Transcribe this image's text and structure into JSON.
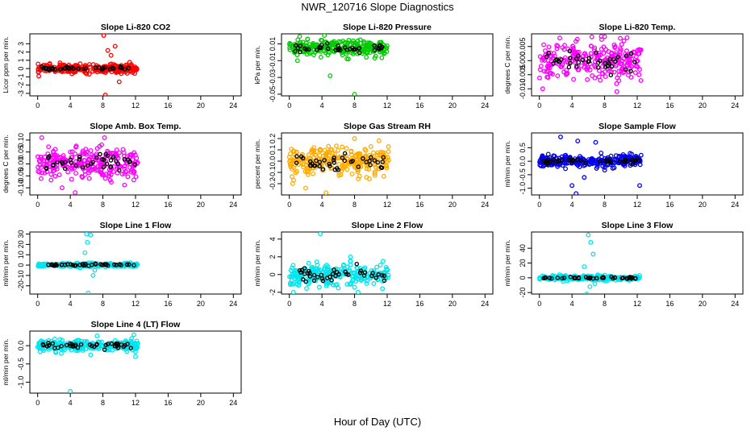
{
  "figure": {
    "title": "NWR_120716  Slope Diagnostics",
    "xlabel": "Hour of Day (UTC)"
  },
  "chart_data": [
    {
      "type": "scatter",
      "title": "Slope Li-820 CO2",
      "ylabel": "Licor ppm per min.",
      "color": "#ff0000",
      "xlim": [
        0,
        24
      ],
      "xticks": [
        0,
        4,
        8,
        12,
        16,
        20,
        24
      ],
      "ylim": [
        -3.3,
        4.2
      ],
      "yticks": [
        -3,
        -2,
        -1,
        0,
        1,
        2,
        3
      ],
      "x_range": [
        0,
        12.2
      ],
      "center": 0,
      "spread": 0.35,
      "outliers": [
        [
          8.1,
          4.0
        ],
        [
          8.3,
          -3.2
        ],
        [
          9.5,
          2.7
        ],
        [
          8.6,
          2.2
        ],
        [
          10.0,
          -1.6
        ],
        [
          9.0,
          1.6
        ]
      ],
      "black_spread": 0.15
    },
    {
      "type": "scatter",
      "title": "Slope Li-820 Pressure",
      "ylabel": "kPa per min.",
      "color": "#00cc00",
      "xlim": [
        0,
        24
      ],
      "xticks": [
        0,
        4,
        8,
        12,
        16,
        20,
        24
      ],
      "ylim": [
        -0.052,
        0.022
      ],
      "yticks": [
        -0.05,
        -0.03,
        -0.01,
        0.01
      ],
      "x_range": [
        0,
        12.0
      ],
      "center": 0.005,
      "spread": 0.006,
      "outliers": [
        [
          8.0,
          -0.05
        ],
        [
          4.3,
          0.02
        ],
        [
          1.0,
          -0.01
        ],
        [
          5.0,
          -0.028
        ],
        [
          3.0,
          -0.003
        ]
      ],
      "black_spread": 0.004
    },
    {
      "type": "scatter",
      "title": "Slope Li-820 Temp.",
      "ylabel": "degrees C per min.",
      "color": "#ff00ff",
      "xlim": [
        0,
        24
      ],
      "xticks": [
        0,
        4,
        8,
        12,
        16,
        20,
        24
      ],
      "ylim": [
        -0.0125,
        0.0095
      ],
      "yticks": [
        -0.01,
        -0.005,
        0.0,
        0.005
      ],
      "x_range": [
        0,
        12.5
      ],
      "center": 0.0,
      "spread": 0.0045,
      "outliers": [
        [
          8.0,
          0.0085
        ],
        [
          9.5,
          -0.011
        ],
        [
          0.4,
          -0.01
        ],
        [
          2.5,
          0.008
        ]
      ],
      "black_spread": 0.003
    },
    {
      "type": "scatter",
      "title": "Slope Amb. Box Temp.",
      "ylabel": "degrees C per min.",
      "color": "#ff00ff",
      "xlim": [
        0,
        24
      ],
      "xticks": [
        0,
        4,
        8,
        12,
        16,
        20,
        24
      ],
      "ylim": [
        -0.13,
        0.13
      ],
      "yticks": [
        -0.1,
        -0.05,
        0.0,
        0.05,
        0.1
      ],
      "x_range": [
        0,
        12.3
      ],
      "center": 0.0,
      "spread": 0.045,
      "outliers": [
        [
          4.6,
          -0.12
        ],
        [
          0.5,
          0.11
        ],
        [
          8.2,
          0.11
        ],
        [
          3.0,
          -0.1
        ]
      ],
      "black_spread": 0.03
    },
    {
      "type": "scatter",
      "title": "Slope Gas Stream RH",
      "ylabel": "percent per min.",
      "color": "#ffaa00",
      "xlim": [
        0,
        24
      ],
      "xticks": [
        0,
        4,
        8,
        12,
        16,
        20,
        24
      ],
      "ylim": [
        -0.3,
        0.25
      ],
      "yticks": [
        -0.2,
        -0.1,
        0.0,
        0.1,
        0.2
      ],
      "x_range": [
        0,
        12.2
      ],
      "center": 0.0,
      "spread": 0.08,
      "outliers": [
        [
          4.5,
          -0.28
        ],
        [
          8.0,
          0.2
        ],
        [
          2.0,
          -0.24
        ],
        [
          11.0,
          0.18
        ]
      ],
      "black_spread": 0.06
    },
    {
      "type": "scatter",
      "title": "Slope Sample Flow",
      "ylabel": "ml/min per min.",
      "color": "#0000ee",
      "xlim": [
        0,
        24
      ],
      "xticks": [
        0,
        4,
        8,
        12,
        16,
        20,
        24
      ],
      "ylim": [
        -1.25,
        1.05
      ],
      "yticks": [
        -1.0,
        -0.5,
        0.0,
        0.5
      ],
      "x_range": [
        0,
        12.5
      ],
      "center": 0.0,
      "spread": 0.15,
      "outliers": [
        [
          4.5,
          -1.2
        ],
        [
          4.0,
          -0.9
        ],
        [
          5.5,
          -0.6
        ],
        [
          12.3,
          -0.9
        ],
        [
          2.6,
          0.9
        ],
        [
          4.7,
          0.75
        ],
        [
          6.9,
          0.7
        ]
      ],
      "black_spread": 0.08
    },
    {
      "type": "scatter",
      "title": "Slope Line 1 Flow",
      "ylabel": "ml/min per min.",
      "color": "#00e5ee",
      "xlim": [
        0,
        24
      ],
      "xticks": [
        0,
        4,
        8,
        12,
        16,
        20,
        24
      ],
      "ylim": [
        -28,
        32
      ],
      "yticks": [
        -20,
        -10,
        0,
        10,
        20,
        30
      ],
      "x_range": [
        0,
        12.3
      ],
      "center": 0.0,
      "spread": 1.2,
      "outliers": [
        [
          6.0,
          30
        ],
        [
          6.5,
          29
        ],
        [
          6.2,
          -27
        ],
        [
          6.8,
          -10
        ],
        [
          6.1,
          22
        ],
        [
          7.0,
          -5
        ],
        [
          5.8,
          12
        ]
      ],
      "black_spread": 0.8
    },
    {
      "type": "scatter",
      "title": "Slope Line 2 Flow",
      "ylabel": "ml/min per min.",
      "color": "#00e5ee",
      "xlim": [
        0,
        24
      ],
      "xticks": [
        0,
        4,
        8,
        12,
        16,
        20,
        24
      ],
      "ylim": [
        -2.2,
        4.8
      ],
      "yticks": [
        -2,
        0,
        2,
        4
      ],
      "x_range": [
        0,
        12.2
      ],
      "center": 0.0,
      "spread": 0.8,
      "outliers": [
        [
          3.8,
          4.6
        ],
        [
          0.5,
          -2.0
        ],
        [
          7.5,
          2.0
        ],
        [
          11.5,
          1.5
        ]
      ],
      "black_spread": 0.7
    },
    {
      "type": "scatter",
      "title": "Slope Line 3 Flow",
      "ylabel": "ml/min per min.",
      "color": "#00e5ee",
      "xlim": [
        0,
        24
      ],
      "xticks": [
        0,
        4,
        8,
        12,
        16,
        20,
        24
      ],
      "ylim": [
        -22,
        62
      ],
      "yticks": [
        -20,
        0,
        20,
        40
      ],
      "x_range": [
        0,
        12.3
      ],
      "center": 0.0,
      "spread": 2.0,
      "outliers": [
        [
          6.0,
          58
        ],
        [
          6.3,
          48
        ],
        [
          6.6,
          32
        ],
        [
          6.2,
          -12
        ],
        [
          5.8,
          -22
        ],
        [
          6.8,
          -8
        ],
        [
          5.5,
          15
        ]
      ],
      "black_spread": 1.2
    },
    {
      "type": "scatter",
      "title": "Slope Line 4 (LT) Flow",
      "ylabel": "ml/min per min.",
      "color": "#00e5ee",
      "xlim": [
        0,
        24
      ],
      "xticks": [
        0,
        4,
        8,
        12,
        16,
        20,
        24
      ],
      "ylim": [
        -1.3,
        0.4
      ],
      "yticks": [
        -1.0,
        -0.5,
        0.0
      ],
      "x_range": [
        0,
        12.3
      ],
      "center": 0.0,
      "spread": 0.1,
      "outliers": [
        [
          4.0,
          -1.25
        ],
        [
          12.0,
          -0.3
        ],
        [
          11.8,
          0.3
        ],
        [
          6.5,
          -0.25
        ]
      ],
      "black_spread": 0.08
    }
  ]
}
